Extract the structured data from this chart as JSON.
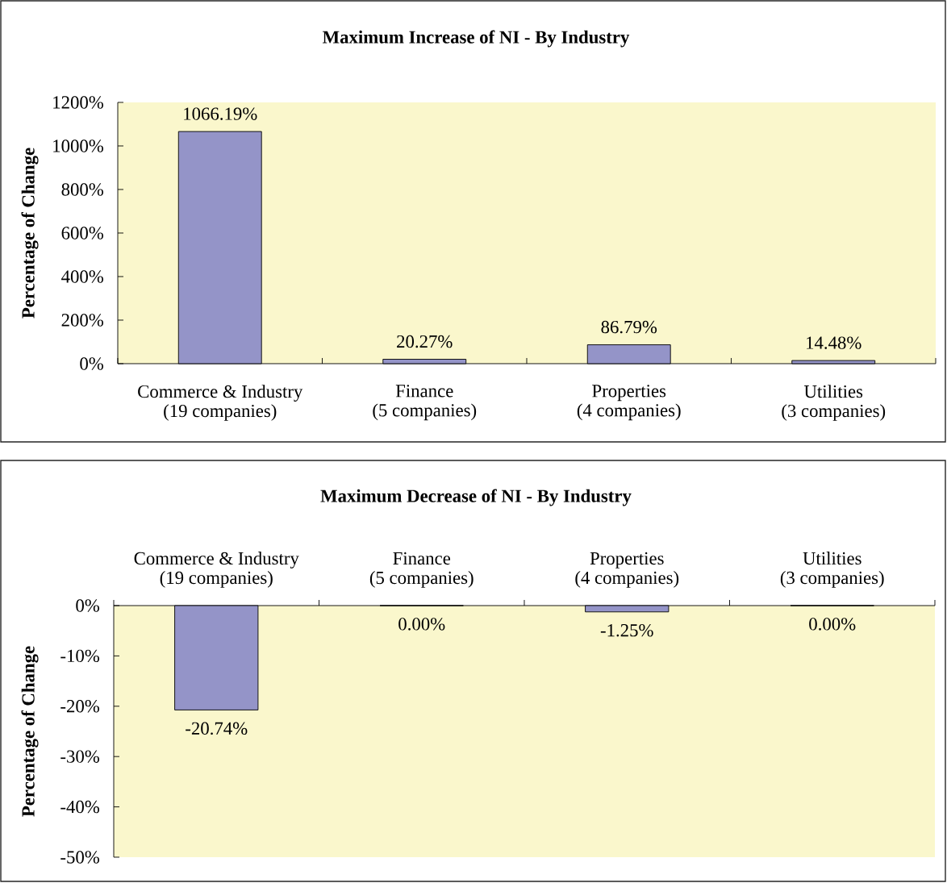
{
  "chart_data": [
    {
      "type": "bar",
      "title": "Maximum Increase of NI - By Industry",
      "ylabel": "Percentage of Change",
      "categories": [
        "Commerce & Industry\n(19 companies)",
        "Finance\n(5 companies)",
        "Properties\n(4 companies)",
        "Utilities\n(3 companies)"
      ],
      "values": [
        1066.19,
        20.27,
        86.79,
        14.48
      ],
      "value_labels": [
        "1066.19%",
        "20.27%",
        "86.79%",
        "14.48%"
      ],
      "color": "#9494c8",
      "ylim": [
        0,
        1200
      ],
      "yticks": [
        {
          "value": 0,
          "label": "0%"
        },
        {
          "value": 200,
          "label": "200%"
        },
        {
          "value": 400,
          "label": "400%"
        },
        {
          "value": 600,
          "label": "600%"
        },
        {
          "value": 800,
          "label": "800%"
        },
        {
          "value": 1000,
          "label": "1000%"
        },
        {
          "value": 1200,
          "label": "1200%"
        }
      ]
    },
    {
      "type": "bar",
      "title": "Maximum Decrease of NI - By Industry",
      "ylabel": "Percentage of Change",
      "categories": [
        "Commerce & Industry\n(19 companies)",
        "Finance\n(5 companies)",
        "Properties\n(4 companies)",
        "Utilities\n(3 companies)"
      ],
      "values": [
        -20.74,
        0,
        -1.25,
        0
      ],
      "value_labels": [
        "-20.74%",
        "0.00%",
        "-1.25%",
        "0.00%"
      ],
      "color": "#9494c8",
      "ylim": [
        -50,
        0
      ],
      "yticks": [
        {
          "value": -50,
          "label": "-50%"
        },
        {
          "value": -40,
          "label": "-40%"
        },
        {
          "value": -30,
          "label": "-30%"
        },
        {
          "value": -20,
          "label": "-20%"
        },
        {
          "value": -10,
          "label": "-10%"
        },
        {
          "value": 0,
          "label": "0%"
        }
      ]
    }
  ]
}
